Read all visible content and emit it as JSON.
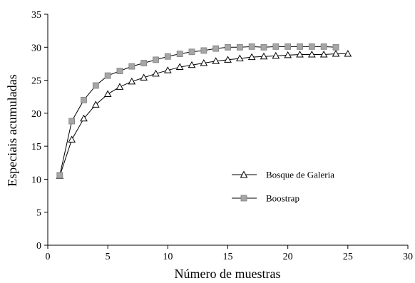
{
  "chart_data": {
    "type": "line",
    "title": "",
    "xlabel": "Número de muestras",
    "ylabel": "Especiais acumuladas",
    "xlim": [
      0,
      30
    ],
    "ylim": [
      0,
      35
    ],
    "xticks": [
      0,
      5,
      10,
      15,
      20,
      25,
      30
    ],
    "yticks": [
      0,
      5,
      10,
      15,
      20,
      25,
      30,
      35
    ],
    "grid": false,
    "legend_position": "center-right",
    "series": [
      {
        "name": "Bosque de Galeria",
        "marker": "triangle-open",
        "color": "#000000",
        "x": [
          1,
          2,
          3,
          4,
          5,
          6,
          7,
          8,
          9,
          10,
          11,
          12,
          13,
          14,
          15,
          16,
          17,
          18,
          19,
          20,
          21,
          22,
          23,
          24,
          25
        ],
        "values": [
          10.5,
          16.0,
          19.2,
          21.3,
          22.9,
          24.0,
          24.8,
          25.4,
          26.0,
          26.5,
          27.0,
          27.3,
          27.6,
          27.9,
          28.1,
          28.3,
          28.5,
          28.6,
          28.7,
          28.8,
          28.9,
          28.9,
          28.9,
          29.0,
          29.0
        ]
      },
      {
        "name": "Boostrap",
        "marker": "square-filled",
        "color": "#a6a6a6",
        "x": [
          1,
          2,
          3,
          4,
          5,
          6,
          7,
          8,
          9,
          10,
          11,
          12,
          13,
          14,
          15,
          16,
          17,
          18,
          19,
          20,
          21,
          22,
          23,
          24
        ],
        "values": [
          10.6,
          18.8,
          22.0,
          24.2,
          25.7,
          26.4,
          27.1,
          27.6,
          28.1,
          28.6,
          29.0,
          29.3,
          29.5,
          29.8,
          30.0,
          30.0,
          30.1,
          30.0,
          30.1,
          30.1,
          30.1,
          30.1,
          30.1,
          30.0
        ]
      }
    ]
  }
}
